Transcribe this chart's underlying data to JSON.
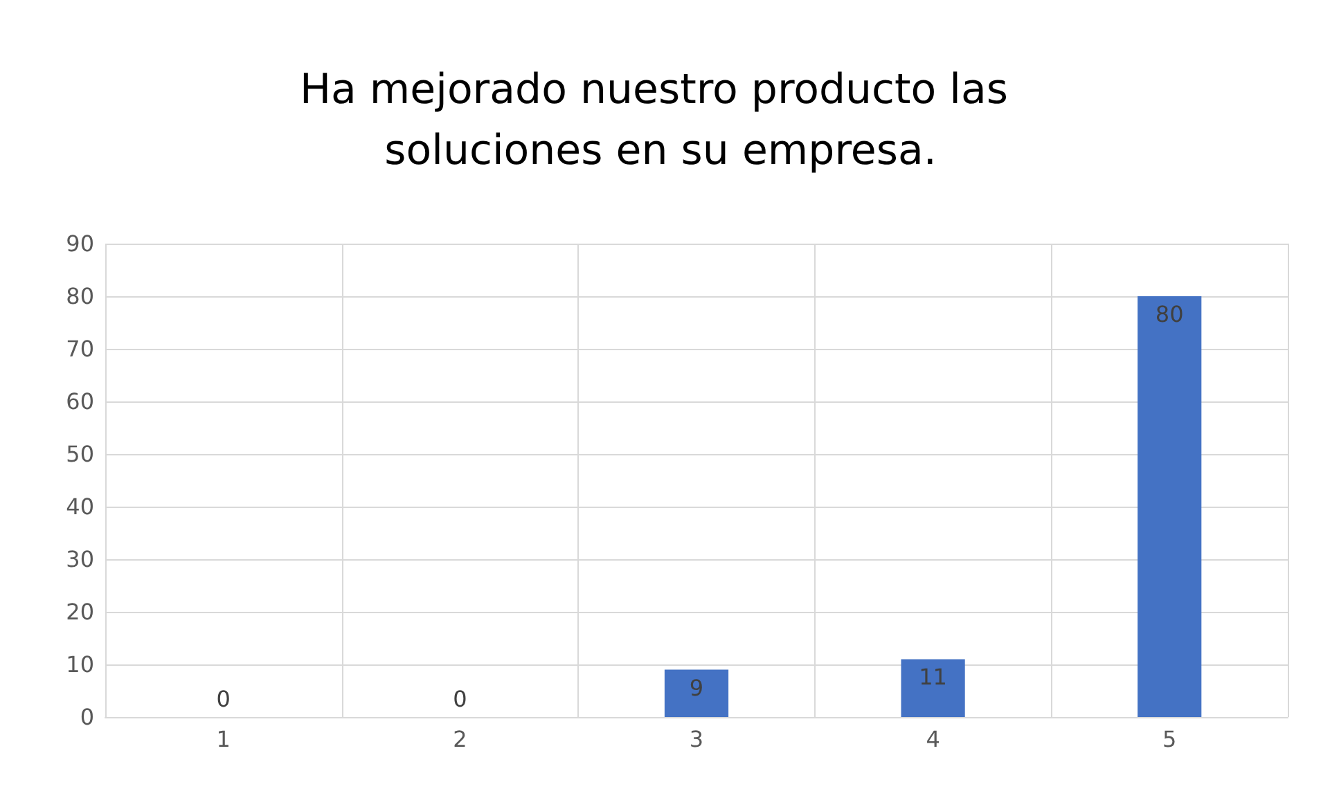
{
  "chart_data": {
    "type": "bar",
    "title": "Ha mejorado nuestro producto las soluciones en su empresa.",
    "categories": [
      "1",
      "2",
      "3",
      "4",
      "5"
    ],
    "values": [
      0,
      0,
      9,
      11,
      80
    ],
    "color": "#4472c4",
    "ylim": [
      0,
      90
    ],
    "yticks": [
      0,
      10,
      20,
      30,
      40,
      50,
      60,
      70,
      80,
      90
    ],
    "grid": true,
    "data_labels": true
  }
}
